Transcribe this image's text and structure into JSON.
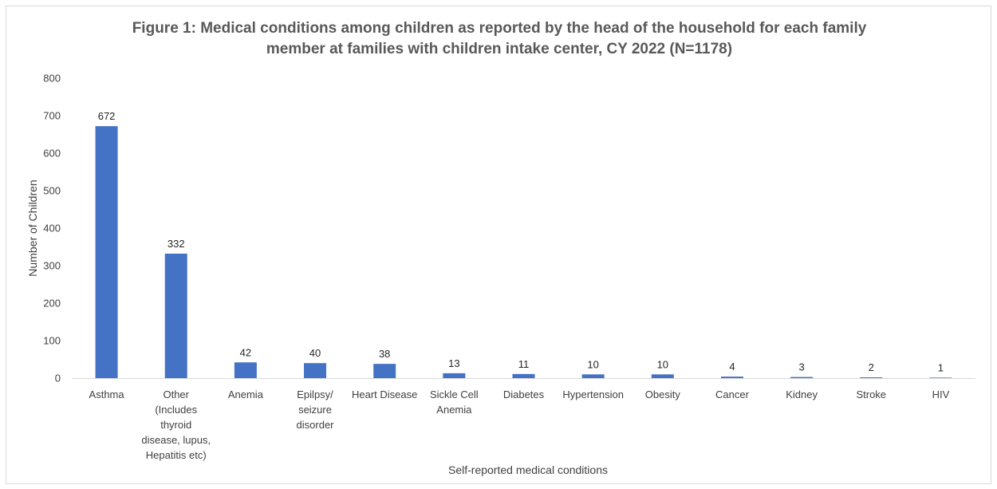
{
  "chart_data": {
    "type": "bar",
    "title": "Figure 1: Medical conditions among children as reported by the head of the household for each family member at families with children intake center, CY 2022 (N=1178)",
    "title_lines": [
      "Figure 1: Medical conditions among children as reported by the head of the household for each family",
      "member at families with children intake center, CY 2022 (N=1178)"
    ],
    "xlabel": "Self-reported medical conditions",
    "ylabel": "Number of Children",
    "ylim": [
      0,
      800
    ],
    "yticks": [
      0,
      100,
      200,
      300,
      400,
      500,
      600,
      700,
      800
    ],
    "grid": false,
    "bar_color": "#4472c4",
    "categories": [
      "Asthma",
      "Other (Includes thyroid disease, lupus, Hepatitis etc)",
      "Anemia",
      "Epilpsy/ seizure disorder",
      "Heart Disease",
      "Sickle Cell Anemia",
      "Diabetes",
      "Hypertension",
      "Obesity",
      "Cancer",
      "Kidney",
      "Stroke",
      "HIV"
    ],
    "category_lines": [
      [
        "Asthma"
      ],
      [
        "Other",
        "(Includes",
        "thyroid",
        "disease, lupus,",
        "Hepatitis etc)"
      ],
      [
        "Anemia"
      ],
      [
        "Epilpsy/",
        "seizure",
        "disorder"
      ],
      [
        "Heart Disease"
      ],
      [
        "Sickle Cell",
        "Anemia"
      ],
      [
        "Diabetes"
      ],
      [
        "Hypertension"
      ],
      [
        "Obesity"
      ],
      [
        "Cancer"
      ],
      [
        "Kidney"
      ],
      [
        "Stroke"
      ],
      [
        "HIV"
      ]
    ],
    "values": [
      672,
      332,
      42,
      40,
      38,
      13,
      11,
      10,
      10,
      4,
      3,
      2,
      1
    ]
  }
}
